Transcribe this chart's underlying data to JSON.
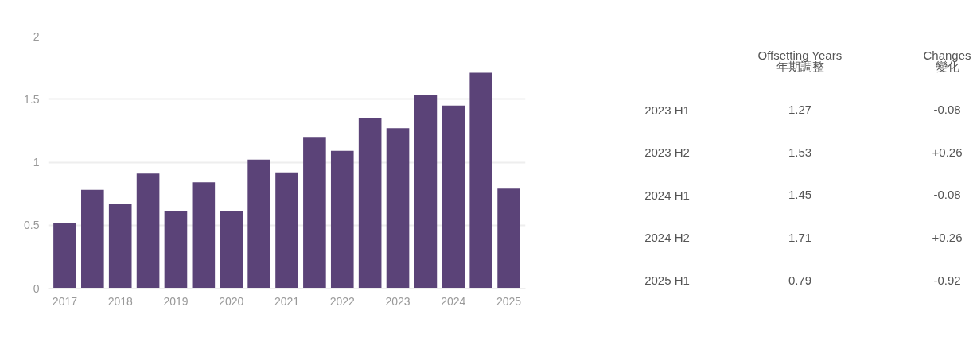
{
  "chart_data": {
    "type": "bar",
    "categories": [
      "2017",
      null,
      "2018",
      null,
      "2019",
      null,
      "2020",
      null,
      "2021",
      null,
      "2022",
      null,
      "2023",
      null,
      "2024",
      null,
      "2025"
    ],
    "values": [
      0.52,
      0.78,
      0.67,
      0.91,
      0.61,
      0.84,
      0.61,
      1.02,
      0.92,
      1.2,
      1.09,
      1.35,
      1.27,
      1.53,
      1.45,
      1.71,
      0.79
    ],
    "color": "#5b4378",
    "ylim": [
      0,
      2
    ],
    "yticks": [
      0,
      0.5,
      1,
      1.5,
      2
    ],
    "grid": "y",
    "annotations": [
      "Offsetting Years",
      "年期調整",
      "Changes",
      "變化",
      "2023 H1",
      "1.27",
      "-0.08",
      "2023 H2",
      "1.53",
      "+0.26",
      "2024 H1",
      "1.45",
      "-0.08",
      "2024 H2",
      "1.71",
      "+0.26",
      "2025 H1",
      "0.79",
      "-0.92"
    ]
  }
}
